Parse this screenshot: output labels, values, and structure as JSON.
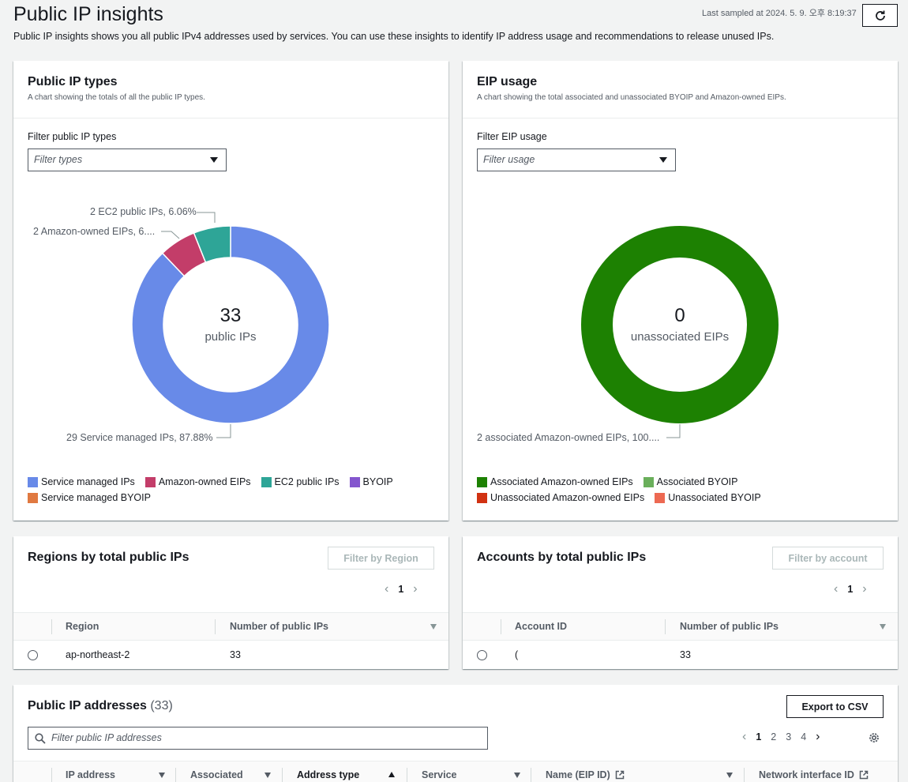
{
  "page": {
    "title": "Public IP insights",
    "description": "Public IP insights shows you all public IPv4 addresses used by services. You can use these insights to identify IP address usage and recommendations to release unused IPs.",
    "last_sampled": "Last sampled at 2024. 5. 9. 오후 8:19:37",
    "refresh_icon": "refresh-icon"
  },
  "ip_types": {
    "title": "Public IP types",
    "subtitle": "A chart showing the totals of all the public IP types.",
    "filter_label": "Filter public IP types",
    "filter_placeholder": "Filter types",
    "center_value": "33",
    "center_unit": "public IPs",
    "labels": {
      "ec2": "2 EC2 public IPs, 6.06%",
      "amazon": "2 Amazon-owned EIPs, 6....",
      "service": "29 Service managed IPs, 87.88%"
    },
    "legend": [
      {
        "label": "Service managed IPs",
        "color": "#688ae8"
      },
      {
        "label": "Amazon-owned EIPs",
        "color": "#c33d69"
      },
      {
        "label": "EC2 public IPs",
        "color": "#2ea597"
      },
      {
        "label": "BYOIP",
        "color": "#8456ce"
      },
      {
        "label": "Service managed BYOIP",
        "color": "#e07941"
      }
    ]
  },
  "eip_usage": {
    "title": "EIP usage",
    "subtitle": "A chart showing the total associated and unassociated BYOIP and Amazon-owned EIPs.",
    "filter_label": "Filter EIP usage",
    "filter_placeholder": "Filter usage",
    "center_value": "0",
    "center_unit": "unassociated EIPs",
    "label": "2 associated Amazon-owned EIPs, 100....",
    "legend": [
      {
        "label": "Associated Amazon-owned EIPs",
        "color": "#1d8102"
      },
      {
        "label": "Associated BYOIP",
        "color": "#6aaf5b"
      },
      {
        "label": "Unassociated Amazon-owned EIPs",
        "color": "#d13212"
      },
      {
        "label": "Unassociated BYOIP",
        "color": "#ed6952"
      }
    ]
  },
  "chart_data": [
    {
      "type": "pie",
      "categories": [
        "Service managed IPs",
        "Amazon-owned EIPs",
        "EC2 public IPs",
        "BYOIP",
        "Service managed BYOIP"
      ],
      "values": [
        29,
        2,
        2,
        0,
        0
      ],
      "legend": "bottom"
    },
    {
      "type": "pie",
      "categories": [
        "Associated Amazon-owned EIPs",
        "Associated BYOIP",
        "Unassociated Amazon-owned EIPs",
        "Unassociated BYOIP"
      ],
      "values": [
        2,
        0,
        0,
        0
      ],
      "legend": "bottom"
    }
  ],
  "regions": {
    "title": "Regions by total public IPs",
    "filter_button": "Filter by Region",
    "page": "1",
    "columns": [
      "Region",
      "Number of public IPs"
    ],
    "rows": [
      {
        "region": "ap-northeast-2",
        "count": "33"
      }
    ]
  },
  "accounts": {
    "title": "Accounts by total public IPs",
    "filter_button": "Filter by account",
    "page": "1",
    "columns": [
      "Account ID",
      "Number of public IPs"
    ],
    "rows": [
      {
        "account": "(",
        "count": "33"
      }
    ]
  },
  "addresses": {
    "title": "Public IP addresses",
    "count": "(33)",
    "export_button": "Export to CSV",
    "search_placeholder": "Filter public IP addresses",
    "pages": [
      "1",
      "2",
      "3",
      "4"
    ],
    "columns": [
      "IP address",
      "Associated",
      "Address type",
      "Service",
      "Name (EIP ID)",
      "Network interface ID"
    ]
  }
}
